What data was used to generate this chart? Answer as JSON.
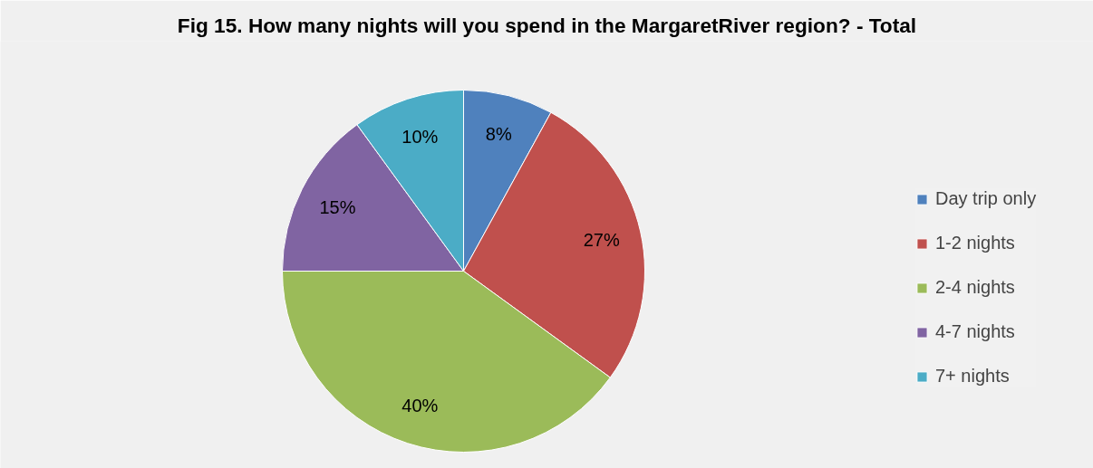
{
  "chart_data": {
    "type": "pie",
    "title": "Fig 15. How many nights will you spend in the MargaretRiver region? - Total",
    "categories": [
      "Day trip only",
      "1-2 nights",
      "2-4 nights",
      "4-7 nights",
      "7+ nights"
    ],
    "values": [
      8,
      27,
      40,
      15,
      10
    ],
    "colors": [
      "#4f81bd",
      "#c0504d",
      "#9bbb59",
      "#8064a2",
      "#4bacc6"
    ],
    "value_labels": [
      "8%",
      "27%",
      "40%",
      "15%",
      "10%"
    ],
    "legend": "right"
  }
}
